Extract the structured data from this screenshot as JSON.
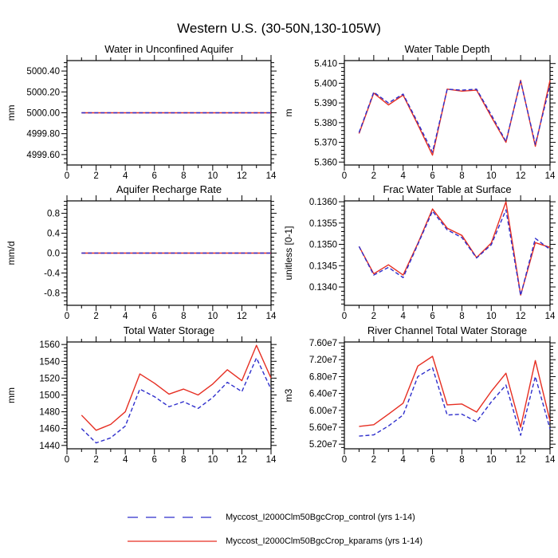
{
  "title": "Western U.S. (30-50N,130-105W)",
  "colors": {
    "control": "#2e2ecc",
    "kparams": "#e62e22",
    "axis": "#000000",
    "background": "#ffffff"
  },
  "legend": {
    "entries": [
      {
        "key": "control",
        "label": "Myccost_I2000Clm50BgcCrop_control (yrs 1-14)",
        "style": "dashed",
        "color": "#2e2ecc"
      },
      {
        "key": "kparams",
        "label": "Myccost_I2000Clm50BgcCrop_kparams (yrs 1-14)",
        "style": "solid",
        "color": "#e62e22"
      }
    ]
  },
  "chart_data": [
    {
      "type": "line",
      "title": "Water in Unconfined Aquifer",
      "ylabel": "mm",
      "x": [
        1,
        2,
        3,
        4,
        5,
        6,
        7,
        8,
        9,
        10,
        11,
        12,
        13,
        14
      ],
      "xlim": [
        0,
        14
      ],
      "xticks": [
        0,
        2,
        4,
        6,
        8,
        10,
        12,
        14
      ],
      "ylim": [
        4999.5,
        5000.5
      ],
      "yticks": [
        4999.6,
        4999.8,
        5000.0,
        5000.2,
        5000.4
      ],
      "ytick_labels": [
        "4999.60",
        "4999.80",
        "5000.00",
        "5000.20",
        "5000.40"
      ],
      "series": [
        {
          "key": "kparams",
          "name": "Myccost_I2000Clm50BgcCrop_kparams (yrs 1-14)",
          "values": [
            5000,
            5000,
            5000,
            5000,
            5000,
            5000,
            5000,
            5000,
            5000,
            5000,
            5000,
            5000,
            5000,
            5000
          ]
        },
        {
          "key": "control",
          "name": "Myccost_I2000Clm50BgcCrop_control (yrs 1-14)",
          "values": [
            5000,
            5000,
            5000,
            5000,
            5000,
            5000,
            5000,
            5000,
            5000,
            5000,
            5000,
            5000,
            5000,
            5000
          ]
        }
      ]
    },
    {
      "type": "line",
      "title": "Water Table Depth",
      "ylabel": "m",
      "x": [
        1,
        2,
        3,
        4,
        5,
        6,
        7,
        8,
        9,
        10,
        11,
        12,
        13,
        14
      ],
      "xlim": [
        0,
        14
      ],
      "xticks": [
        0,
        2,
        4,
        6,
        8,
        10,
        12,
        14
      ],
      "ylim": [
        5.3585,
        5.4115
      ],
      "yticks": [
        5.36,
        5.37,
        5.38,
        5.39,
        5.4,
        5.41
      ],
      "ytick_labels": [
        "5.360",
        "5.370",
        "5.380",
        "5.390",
        "5.400",
        "5.410"
      ],
      "series": [
        {
          "key": "kparams",
          "name": "Myccost_I2000Clm50BgcCrop_kparams (yrs 1-14)",
          "values": [
            5.3745,
            5.395,
            5.389,
            5.394,
            5.379,
            5.3635,
            5.397,
            5.396,
            5.3965,
            5.383,
            5.37,
            5.4015,
            5.368,
            5.4015
          ]
        },
        {
          "key": "control",
          "name": "Myccost_I2000Clm50BgcCrop_control (yrs 1-14)",
          "values": [
            5.375,
            5.3955,
            5.39,
            5.3945,
            5.38,
            5.365,
            5.397,
            5.3965,
            5.397,
            5.384,
            5.3705,
            5.401,
            5.369,
            5.399
          ]
        }
      ]
    },
    {
      "type": "line",
      "title": "Aquifer Recharge Rate",
      "ylabel": "mm/d",
      "x": [
        1,
        2,
        3,
        4,
        5,
        6,
        7,
        8,
        9,
        10,
        11,
        12,
        13,
        14
      ],
      "xlim": [
        0,
        14
      ],
      "xticks": [
        0,
        2,
        4,
        6,
        8,
        10,
        12,
        14
      ],
      "ylim": [
        -1.05,
        1.05
      ],
      "yticks": [
        -0.8,
        -0.4,
        0.0,
        0.4,
        0.8
      ],
      "ytick_labels": [
        "-0.8",
        "-0.4",
        "0.0",
        "0.4",
        "0.8"
      ],
      "series": [
        {
          "key": "kparams",
          "name": "Myccost_I2000Clm50BgcCrop_kparams (yrs 1-14)",
          "values": [
            0,
            0,
            0,
            0,
            0,
            0,
            0,
            0,
            0,
            0,
            0,
            0,
            0,
            0
          ]
        },
        {
          "key": "control",
          "name": "Myccost_I2000Clm50BgcCrop_control (yrs 1-14)",
          "values": [
            0,
            0,
            0,
            0,
            0,
            0,
            0,
            0,
            0,
            0,
            0,
            0,
            0,
            0
          ]
        }
      ]
    },
    {
      "type": "line",
      "title": "Frac Water Table at Surface",
      "ylabel": "unitless [0-1]",
      "x": [
        1,
        2,
        3,
        4,
        5,
        6,
        7,
        8,
        9,
        10,
        11,
        12,
        13,
        14
      ],
      "xlim": [
        0,
        14
      ],
      "xticks": [
        0,
        2,
        4,
        6,
        8,
        10,
        12,
        14
      ],
      "ylim": [
        0.13357,
        0.13602
      ],
      "yticks": [
        0.134,
        0.1345,
        0.135,
        0.1355,
        0.136
      ],
      "ytick_labels": [
        "0.1340",
        "0.1345",
        "0.1350",
        "0.1355",
        "0.1360"
      ],
      "series": [
        {
          "key": "kparams",
          "name": "Myccost_I2000Clm50BgcCrop_kparams (yrs 1-14)",
          "values": [
            0.13495,
            0.13431,
            0.13452,
            0.13428,
            0.13502,
            0.13583,
            0.13538,
            0.13521,
            0.13469,
            0.13503,
            0.136,
            0.13381,
            0.13504,
            0.13493
          ]
        },
        {
          "key": "control",
          "name": "Myccost_I2000Clm50BgcCrop_control (yrs 1-14)",
          "values": [
            0.13495,
            0.13428,
            0.13446,
            0.13422,
            0.135,
            0.13578,
            0.13534,
            0.13516,
            0.13468,
            0.13499,
            0.13581,
            0.1338,
            0.13514,
            0.13488
          ]
        }
      ]
    },
    {
      "type": "line",
      "title": "Total Water Storage",
      "ylabel": "mm",
      "x": [
        1,
        2,
        3,
        4,
        5,
        6,
        7,
        8,
        9,
        10,
        11,
        12,
        13,
        14
      ],
      "xlim": [
        0,
        14
      ],
      "xticks": [
        0,
        2,
        4,
        6,
        8,
        10,
        12,
        14
      ],
      "ylim": [
        1436,
        1563
      ],
      "yticks": [
        1440,
        1460,
        1480,
        1500,
        1520,
        1540,
        1560
      ],
      "ytick_labels": [
        "1440",
        "1460",
        "1480",
        "1500",
        "1520",
        "1540",
        "1560"
      ],
      "series": [
        {
          "key": "kparams",
          "name": "Myccost_I2000Clm50BgcCrop_kparams (yrs 1-14)",
          "values": [
            1476,
            1458,
            1465,
            1480,
            1525,
            1514,
            1501,
            1507,
            1500,
            1513,
            1530,
            1517,
            1559,
            1520
          ]
        },
        {
          "key": "control",
          "name": "Myccost_I2000Clm50BgcCrop_control (yrs 1-14)",
          "values": [
            1460,
            1443,
            1449,
            1463,
            1507,
            1498,
            1486,
            1492,
            1484,
            1497,
            1515,
            1504,
            1544,
            1507
          ]
        }
      ]
    },
    {
      "type": "line",
      "title": "River Channel Total Water Storage",
      "ylabel": "m3",
      "x": [
        1,
        2,
        3,
        4,
        5,
        6,
        7,
        8,
        9,
        10,
        11,
        12,
        13,
        14
      ],
      "xlim": [
        0,
        14
      ],
      "xticks": [
        0,
        2,
        4,
        6,
        8,
        10,
        12,
        14
      ],
      "ylim": [
        50900000.0,
        76200000.0
      ],
      "yticks": [
        52000000.0,
        56000000.0,
        60000000.0,
        64000000.0,
        68000000.0,
        72000000.0,
        76000000.0
      ],
      "ytick_labels": [
        "5.20e7",
        "5.60e7",
        "6.00e7",
        "6.40e7",
        "6.80e7",
        "7.20e7",
        "7.60e7"
      ],
      "series": [
        {
          "key": "kparams",
          "name": "Myccost_I2000Clm50BgcCrop_kparams (yrs 1-14)",
          "values": [
            56200000.0,
            56600000.0,
            59100000.0,
            61700000.0,
            70500000.0,
            72800000.0,
            61300000.0,
            61500000.0,
            59600000.0,
            64500000.0,
            68800000.0,
            56000000.0,
            71800000.0,
            57500000.0
          ]
        },
        {
          "key": "control",
          "name": "Myccost_I2000Clm50BgcCrop_control (yrs 1-14)",
          "values": [
            53900000.0,
            54200000.0,
            56300000.0,
            58900000.0,
            68000000.0,
            70100000.0,
            58900000.0,
            59100000.0,
            57300000.0,
            62000000.0,
            66000000.0,
            54100000.0,
            68000000.0,
            55600000.0
          ]
        }
      ]
    }
  ]
}
